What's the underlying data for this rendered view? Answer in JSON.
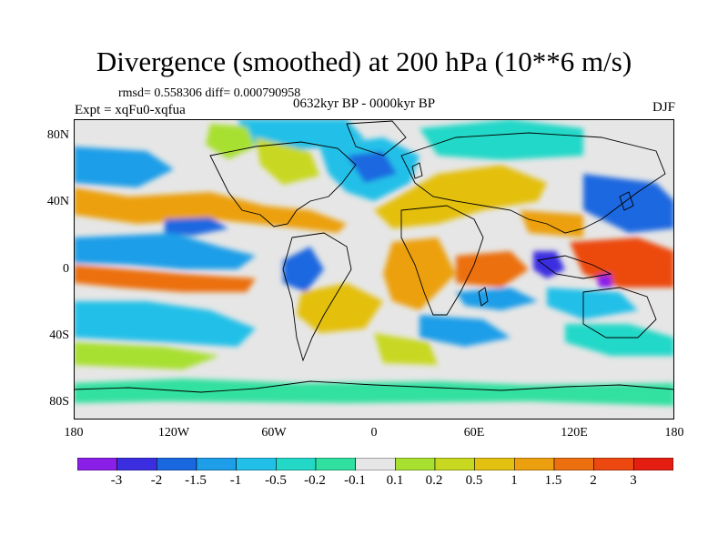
{
  "title": "Divergence (smoothed) at 200 hPa (10**6 m/s)",
  "stats": "rmsd= 0.558306 diff= 0.000790958",
  "experiment": "Expt = xqFu0-xqfua",
  "period": "0632kyr BP - 0000kyr BP",
  "season": "DJF",
  "lat_labels": [
    "80N",
    "40N",
    "0",
    "40S",
    "80S"
  ],
  "lon_labels": [
    "180",
    "120W",
    "60W",
    "0",
    "60E",
    "120E",
    "180"
  ],
  "colorbar": {
    "colors": [
      "#8a1fe8",
      "#3a2ee0",
      "#1a68e0",
      "#1e9ee8",
      "#22c0e8",
      "#24d8c8",
      "#30e0a0",
      "#e6e6e6",
      "#a8e030",
      "#c8d820",
      "#e4c010",
      "#eca010",
      "#ec7010",
      "#ec4810",
      "#e41e10"
    ],
    "labels": [
      "-3",
      "-2",
      "-1.5",
      "-1",
      "-0.5",
      "-0.2",
      "-0.1",
      "0.1",
      "0.2",
      "0.5",
      "1",
      "1.5",
      "2",
      "3"
    ]
  },
  "map_colors": {
    "neutral": "#e6e6e6",
    "land": "#000000"
  }
}
